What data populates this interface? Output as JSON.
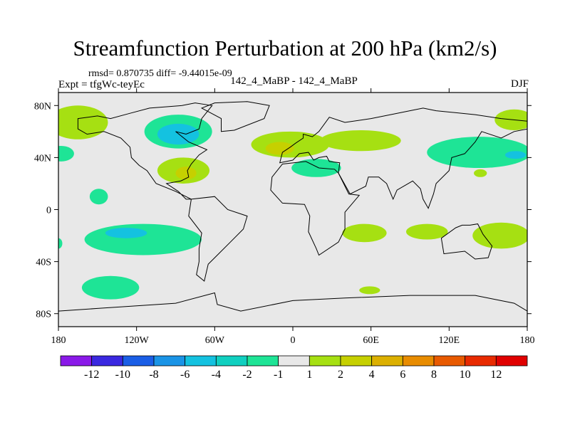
{
  "title": "Streamfunction Perturbation at 200 hPa (km2/s)",
  "stats": "rmsd= 0.870735 diff= -9.44015e-09",
  "expt": "Expt = tfgWc-teyEc",
  "center_label": "142_4_MaBP - 142_4_MaBP",
  "season": "DJF",
  "colors": {
    "background": "#e8e8e8",
    "coast": "#000000"
  },
  "chart_data": {
    "type": "heatmap",
    "projection": "cylindrical-equidistant",
    "title": "Streamfunction Perturbation at 200 hPa (km2/s)",
    "xlim": [
      -180,
      180
    ],
    "ylim": [
      -90,
      90
    ],
    "x_ticks": [
      {
        "value": -180,
        "label": "180"
      },
      {
        "value": -120,
        "label": "120W"
      },
      {
        "value": -60,
        "label": "60W"
      },
      {
        "value": 0,
        "label": "0"
      },
      {
        "value": 60,
        "label": "60E"
      },
      {
        "value": 120,
        "label": "120E"
      },
      {
        "value": 180,
        "label": "180"
      }
    ],
    "y_ticks": [
      {
        "value": 80,
        "label": "80N"
      },
      {
        "value": 40,
        "label": "40N"
      },
      {
        "value": 0,
        "label": "0"
      },
      {
        "value": -40,
        "label": "40S"
      },
      {
        "value": -80,
        "label": "80S"
      }
    ],
    "colorbar": {
      "boundaries": [
        "-12",
        "-10",
        "-8",
        "-6",
        "-4",
        "-2",
        "-1",
        "1",
        "2",
        "4",
        "6",
        "8",
        "10",
        "12"
      ],
      "colors": [
        "#8a19e8",
        "#3a28e0",
        "#1a5ee6",
        "#1a94e6",
        "#14c2e0",
        "#10d0c0",
        "#1ee496",
        "#e8e8e8",
        "#a6e012",
        "#c6d000",
        "#dcb000",
        "#e88c00",
        "#e85a00",
        "#e82a00",
        "#e00000"
      ]
    },
    "regions": [
      {
        "name": "north-pacific-west",
        "level": "1 to 2",
        "color": "#a6e012",
        "lon": -165,
        "lat": 67,
        "dlon": 23,
        "dlat": 13
      },
      {
        "name": "north-pacific-band",
        "level": "-1 to 1",
        "color": "#1ee496",
        "lon": -178,
        "lat": 43,
        "dlon": 10,
        "dlat": 6
      },
      {
        "name": "north-america-north",
        "level": "-1 to -2",
        "color": "#1ee496",
        "lon": -88,
        "lat": 60,
        "dlon": 26,
        "dlat": 13
      },
      {
        "name": "north-america-core",
        "level": "-2 to -4",
        "color": "#14c2e0",
        "lon": -88,
        "lat": 58,
        "dlon": 16,
        "dlat": 8
      },
      {
        "name": "eastern-us",
        "level": "1 to 2",
        "color": "#a6e012",
        "lon": -84,
        "lat": 30,
        "dlon": 20,
        "dlat": 10
      },
      {
        "name": "eastern-us-core",
        "level": "2 to 4",
        "color": "#c6d000",
        "lon": -82,
        "lat": 28,
        "dlon": 8,
        "dlat": 5
      },
      {
        "name": "north-atlantic",
        "level": "1 to 2",
        "color": "#a6e012",
        "lon": -2,
        "lat": 50,
        "dlon": 30,
        "dlat": 10
      },
      {
        "name": "north-atlantic-core",
        "level": "2 to 4",
        "color": "#c6d000",
        "lon": -10,
        "lat": 47,
        "dlon": 11,
        "dlat": 5
      },
      {
        "name": "europe-asia-band",
        "level": "1 to 2",
        "color": "#a6e012",
        "lon": 52,
        "lat": 53,
        "dlon": 31,
        "dlat": 8
      },
      {
        "name": "mediterranean",
        "level": "-1 to -2",
        "color": "#1ee496",
        "lon": 18,
        "lat": 32,
        "dlon": 19,
        "dlat": 7
      },
      {
        "name": "west-pacific-north",
        "level": "-1 to -2",
        "color": "#1ee496",
        "lon": 143,
        "lat": 44,
        "dlon": 40,
        "dlat": 12
      },
      {
        "name": "west-pacific-north-core",
        "level": "-2 to -4",
        "color": "#14c2e0",
        "lon": 171,
        "lat": 42,
        "dlon": 8,
        "dlat": 3
      },
      {
        "name": "arctic-east",
        "level": "1 to 2",
        "color": "#a6e012",
        "lon": 170,
        "lat": 69,
        "dlon": 15,
        "dlat": 8
      },
      {
        "name": "west-pacific-small",
        "level": "1 to 2",
        "color": "#a6e012",
        "lon": 144,
        "lat": 28,
        "dlon": 5,
        "dlat": 3
      },
      {
        "name": "tropical-pacific",
        "level": "-1 to -2",
        "color": "#1ee496",
        "lon": -149,
        "lat": 10,
        "dlon": 7,
        "dlat": 6
      },
      {
        "name": "south-pacific",
        "level": "-1 to -2",
        "color": "#1ee496",
        "lon": -115,
        "lat": -23,
        "dlon": 45,
        "dlat": 12
      },
      {
        "name": "south-pacific-core",
        "level": "-2 to -4",
        "color": "#14c2e0",
        "lon": -128,
        "lat": -18,
        "dlon": 16,
        "dlat": 4
      },
      {
        "name": "southern-ocean",
        "level": "-1 to -2",
        "color": "#1ee496",
        "lon": -140,
        "lat": -60,
        "dlon": 22,
        "dlat": 9
      },
      {
        "name": "indian-ocean-south",
        "level": "1 to 2",
        "color": "#a6e012",
        "lon": 55,
        "lat": -18,
        "dlon": 17,
        "dlat": 7
      },
      {
        "name": "australia-west",
        "level": "1 to 2",
        "color": "#a6e012",
        "lon": 103,
        "lat": -17,
        "dlon": 16,
        "dlat": 6
      },
      {
        "name": "south-pacific-east",
        "level": "1 to 2",
        "color": "#a6e012",
        "lon": 160,
        "lat": -20,
        "dlon": 22,
        "dlat": 10
      },
      {
        "name": "southern-ocean-africa",
        "level": "1 to 2",
        "color": "#a6e012",
        "lon": 59,
        "lat": -62,
        "dlon": 8,
        "dlat": 3
      },
      {
        "name": "south-america-edge",
        "level": "-1 to -2",
        "color": "#1ee496",
        "lon": -180,
        "lat": -26,
        "dlon": 3,
        "dlat": 4
      }
    ],
    "coastlines": [
      {
        "name": "north-america",
        "points": [
          [
            -165,
            70
          ],
          [
            -150,
            72
          ],
          [
            -140,
            70
          ],
          [
            -125,
            74
          ],
          [
            -110,
            78
          ],
          [
            -85,
            80
          ],
          [
            -75,
            82
          ],
          [
            -62,
            80
          ],
          [
            -70,
            70
          ],
          [
            -72,
            62
          ],
          [
            -82,
            58
          ],
          [
            -90,
            60
          ],
          [
            -80,
            52
          ],
          [
            -66,
            46
          ],
          [
            -72,
            42
          ],
          [
            -78,
            35
          ],
          [
            -81,
            30
          ],
          [
            -80,
            25
          ],
          [
            -86,
            22
          ],
          [
            -97,
            20
          ],
          [
            -88,
            14
          ],
          [
            -82,
            8
          ],
          [
            -78,
            8
          ],
          [
            -90,
            14
          ],
          [
            -105,
            20
          ],
          [
            -112,
            30
          ],
          [
            -118,
            34
          ],
          [
            -124,
            40
          ],
          [
            -125,
            48
          ],
          [
            -132,
            55
          ],
          [
            -145,
            60
          ],
          [
            -158,
            58
          ],
          [
            -165,
            62
          ],
          [
            -165,
            70
          ]
        ]
      },
      {
        "name": "greenland",
        "points": [
          [
            -55,
            60
          ],
          [
            -45,
            61
          ],
          [
            -22,
            70
          ],
          [
            -18,
            80
          ],
          [
            -35,
            83
          ],
          [
            -60,
            82
          ],
          [
            -70,
            78
          ],
          [
            -55,
            70
          ],
          [
            -55,
            60
          ]
        ]
      },
      {
        "name": "south-america",
        "points": [
          [
            -78,
            8
          ],
          [
            -60,
            10
          ],
          [
            -50,
            0
          ],
          [
            -35,
            -5
          ],
          [
            -38,
            -15
          ],
          [
            -48,
            -25
          ],
          [
            -58,
            -35
          ],
          [
            -65,
            -42
          ],
          [
            -68,
            -55
          ],
          [
            -74,
            -50
          ],
          [
            -72,
            -40
          ],
          [
            -72,
            -30
          ],
          [
            -70,
            -18
          ],
          [
            -80,
            -5
          ],
          [
            -78,
            8
          ]
        ]
      },
      {
        "name": "eurasia",
        "points": [
          [
            -10,
            36
          ],
          [
            -8,
            44
          ],
          [
            -2,
            48
          ],
          [
            2,
            51
          ],
          [
            8,
            55
          ],
          [
            8,
            58
          ],
          [
            15,
            56
          ],
          [
            20,
            60
          ],
          [
            28,
            71
          ],
          [
            40,
            67
          ],
          [
            60,
            70
          ],
          [
            75,
            73
          ],
          [
            100,
            78
          ],
          [
            110,
            76
          ],
          [
            140,
            73
          ],
          [
            160,
            70
          ],
          [
            180,
            68
          ],
          [
            180,
            62
          ],
          [
            170,
            60
          ],
          [
            160,
            55
          ],
          [
            145,
            60
          ],
          [
            140,
            52
          ],
          [
            132,
            43
          ],
          [
            122,
            40
          ],
          [
            120,
            30
          ],
          [
            110,
            20
          ],
          [
            108,
            12
          ],
          [
            104,
            1
          ],
          [
            100,
            8
          ],
          [
            98,
            16
          ],
          [
            92,
            22
          ],
          [
            80,
            15
          ],
          [
            77,
            8
          ],
          [
            72,
            20
          ],
          [
            66,
            25
          ],
          [
            58,
            25
          ],
          [
            56,
            18
          ],
          [
            44,
            12
          ],
          [
            35,
            28
          ],
          [
            36,
            36
          ],
          [
            28,
            37
          ],
          [
            26,
            41
          ],
          [
            20,
            40
          ],
          [
            16,
            38
          ],
          [
            12,
            44
          ],
          [
            5,
            43
          ],
          [
            0,
            38
          ],
          [
            -10,
            36
          ]
        ]
      },
      {
        "name": "africa",
        "points": [
          [
            -17,
            15
          ],
          [
            -16,
            25
          ],
          [
            -8,
            35
          ],
          [
            10,
            37
          ],
          [
            20,
            32
          ],
          [
            32,
            31
          ],
          [
            35,
            28
          ],
          [
            43,
            12
          ],
          [
            51,
            11
          ],
          [
            40,
            -2
          ],
          [
            40,
            -15
          ],
          [
            35,
            -25
          ],
          [
            20,
            -35
          ],
          [
            18,
            -30
          ],
          [
            12,
            -17
          ],
          [
            13,
            -5
          ],
          [
            9,
            4
          ],
          [
            -8,
            5
          ],
          [
            -17,
            15
          ]
        ]
      },
      {
        "name": "australia",
        "points": [
          [
            114,
            -22
          ],
          [
            125,
            -14
          ],
          [
            130,
            -12
          ],
          [
            136,
            -12
          ],
          [
            142,
            -11
          ],
          [
            146,
            -19
          ],
          [
            153,
            -28
          ],
          [
            150,
            -37
          ],
          [
            140,
            -38
          ],
          [
            132,
            -32
          ],
          [
            116,
            -34
          ],
          [
            114,
            -22
          ]
        ]
      },
      {
        "name": "antarctica",
        "points": [
          [
            -180,
            -78
          ],
          [
            -150,
            -76
          ],
          [
            -120,
            -74
          ],
          [
            -90,
            -72
          ],
          [
            -60,
            -64
          ],
          [
            -58,
            -73
          ],
          [
            -40,
            -78
          ],
          [
            0,
            -70
          ],
          [
            40,
            -68
          ],
          [
            90,
            -66
          ],
          [
            140,
            -66
          ],
          [
            170,
            -72
          ],
          [
            180,
            -78
          ]
        ],
        "open": true
      }
    ]
  }
}
